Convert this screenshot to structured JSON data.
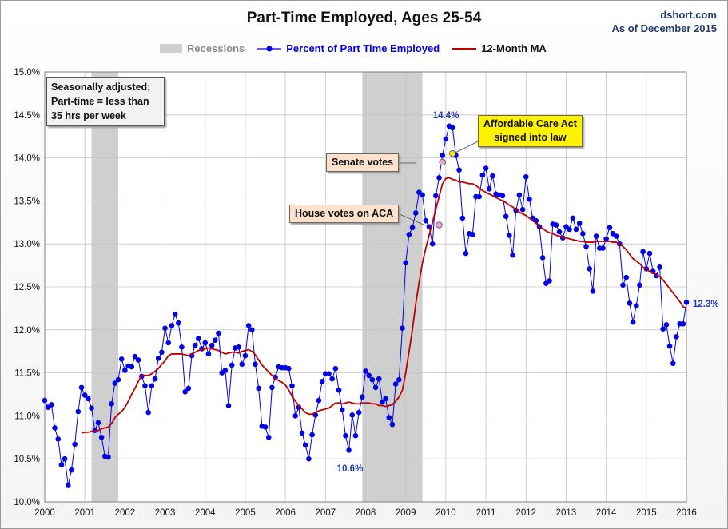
{
  "header": {
    "title": "Part-Time Employed, Ages 25-54",
    "source_line1": "dshort.com",
    "source_line2": "As of December 2015"
  },
  "legend": {
    "recessions": "Recessions",
    "series": "Percent of Part Time Employed",
    "ma": "12-Month MA"
  },
  "note": {
    "line1": "Seasonally adjusted;",
    "line2": "Part-time = less than",
    "line3": "35 hrs per week"
  },
  "annotations": {
    "senate": "Senate votes",
    "house": "House votes on ACA",
    "aca_line1": "Affordable Care Act",
    "aca_line2": "signed into law",
    "peak": "14.4%",
    "trough": "10.6%",
    "last": "12.3%"
  },
  "colors": {
    "series": "#0000e8",
    "ma": "#c00000",
    "recession": "#cfcfcf",
    "label": "#1f3bb0"
  },
  "chart_data": {
    "type": "line",
    "title": "Part-Time Employed, Ages 25-54",
    "xlabel": "",
    "ylabel": "",
    "x_start": "2000-01",
    "frequency": "monthly",
    "xlim": [
      2000,
      2016
    ],
    "ylim": [
      10.0,
      15.0
    ],
    "y_ticks": [
      "10.0%",
      "10.5%",
      "11.0%",
      "11.5%",
      "12.0%",
      "12.5%",
      "13.0%",
      "13.5%",
      "14.0%",
      "14.5%",
      "15.0%"
    ],
    "x_ticks": [
      "2000",
      "2001",
      "2002",
      "2003",
      "2004",
      "2005",
      "2006",
      "2007",
      "2008",
      "2009",
      "2010",
      "2011",
      "2012",
      "2013",
      "2014",
      "2015",
      "2016"
    ],
    "grid": true,
    "legend_position": "top",
    "recessions": [
      [
        "2001-03",
        "2001-11"
      ],
      [
        "2007-12",
        "2009-06"
      ]
    ],
    "series": [
      {
        "name": "Percent of Part Time Employed",
        "values": [
          11.18,
          11.1,
          11.13,
          10.86,
          10.73,
          10.43,
          10.5,
          10.19,
          10.37,
          10.67,
          11.05,
          11.33,
          11.24,
          11.2,
          11.09,
          10.83,
          10.92,
          10.75,
          10.53,
          10.52,
          11.14,
          11.38,
          11.42,
          11.66,
          11.53,
          11.58,
          11.57,
          11.69,
          11.65,
          11.46,
          11.35,
          11.04,
          11.35,
          11.43,
          11.67,
          11.74,
          12.02,
          11.85,
          12.05,
          12.18,
          12.08,
          11.8,
          11.28,
          11.32,
          11.7,
          11.82,
          11.9,
          11.78,
          11.85,
          11.72,
          11.82,
          11.88,
          11.96,
          11.5,
          11.53,
          11.12,
          11.59,
          11.79,
          11.8,
          11.6,
          11.7,
          12.05,
          12.0,
          11.6,
          11.32,
          10.88,
          10.87,
          10.75,
          11.33,
          11.45,
          11.57,
          11.56,
          11.56,
          11.55,
          11.35,
          11.0,
          11.1,
          10.8,
          10.66,
          10.5,
          10.78,
          11.01,
          11.18,
          11.4,
          11.49,
          11.49,
          11.43,
          11.55,
          11.3,
          11.07,
          10.77,
          10.6,
          11.01,
          10.77,
          11.04,
          11.22,
          11.52,
          11.47,
          11.42,
          11.33,
          11.43,
          11.16,
          11.2,
          10.98,
          10.9,
          11.37,
          11.42,
          12.02,
          12.78,
          13.11,
          13.19,
          13.36,
          13.6,
          13.57,
          13.27,
          13.2,
          13.0,
          13.56,
          13.77,
          14.03,
          14.22,
          14.37,
          14.35,
          14.03,
          13.86,
          13.3,
          12.89,
          13.12,
          13.11,
          13.55,
          13.55,
          13.8,
          13.88,
          13.64,
          13.79,
          13.58,
          13.57,
          13.56,
          13.32,
          13.1,
          12.87,
          13.39,
          13.57,
          13.4,
          13.78,
          13.52,
          13.3,
          13.27,
          13.2,
          12.84,
          12.54,
          12.57,
          13.23,
          13.22,
          13.14,
          13.07,
          13.2,
          13.17,
          13.3,
          13.17,
          13.24,
          13.12,
          12.97,
          12.71,
          12.45,
          13.09,
          12.95,
          12.95,
          13.06,
          13.19,
          13.12,
          13.09,
          13.0,
          12.52,
          12.61,
          12.31,
          12.09,
          12.28,
          12.52,
          12.91,
          12.71,
          12.89,
          12.68,
          12.63,
          12.73,
          12.01,
          12.06,
          11.81,
          11.61,
          11.92,
          12.07,
          12.07,
          12.32
        ]
      },
      {
        "name": "12-Month MA",
        "values": [
          null,
          null,
          null,
          null,
          null,
          null,
          null,
          null,
          null,
          null,
          null,
          10.8,
          10.81,
          10.81,
          10.82,
          10.82,
          10.83,
          10.85,
          10.86,
          10.87,
          10.91,
          10.98,
          11.02,
          11.05,
          11.1,
          11.17,
          11.25,
          11.32,
          11.4,
          11.47,
          11.47,
          11.47,
          11.49,
          11.52,
          11.55,
          11.6,
          11.64,
          11.7,
          11.72,
          11.72,
          11.72,
          11.72,
          11.71,
          11.7,
          11.72,
          11.74,
          11.76,
          11.77,
          11.78,
          11.79,
          11.78,
          11.77,
          11.76,
          11.74,
          11.72,
          11.73,
          11.74,
          11.74,
          11.73,
          11.75,
          11.76,
          11.77,
          11.75,
          11.71,
          11.65,
          11.59,
          11.55,
          11.51,
          11.47,
          11.43,
          11.41,
          11.39,
          11.36,
          11.3,
          11.23,
          11.17,
          11.12,
          11.08,
          11.04,
          11.02,
          11.02,
          11.04,
          11.06,
          11.07,
          11.08,
          11.09,
          11.12,
          11.15,
          11.15,
          11.14,
          11.15,
          11.16,
          11.15,
          11.14,
          11.14,
          11.15,
          11.15,
          11.15,
          11.14,
          11.14,
          11.12,
          11.12,
          11.11,
          11.12,
          11.13,
          11.17,
          11.22,
          11.3,
          11.5,
          11.75,
          12.0,
          12.3,
          12.55,
          12.78,
          12.95,
          13.1,
          13.25,
          13.4,
          13.55,
          13.7,
          13.76,
          13.77,
          13.75,
          13.74,
          13.72,
          13.72,
          13.71,
          13.7,
          13.7,
          13.68,
          13.65,
          13.62,
          13.6,
          13.58,
          13.56,
          13.54,
          13.52,
          13.5,
          13.48,
          13.45,
          13.43,
          13.4,
          13.37,
          13.35,
          13.33,
          13.3,
          13.27,
          13.24,
          13.2,
          13.18,
          13.15,
          13.13,
          13.12,
          13.1,
          13.09,
          13.08,
          13.07,
          13.06,
          13.05,
          13.04,
          13.03,
          13.03,
          13.02,
          13.02,
          13.02,
          13.03,
          13.03,
          13.03,
          13.03,
          13.03,
          13.02,
          13.02,
          13.0,
          12.97,
          12.93,
          12.88,
          12.83,
          12.8,
          12.77,
          12.73,
          12.7,
          12.68,
          12.66,
          12.64,
          12.62,
          12.58,
          12.53,
          12.48,
          12.43,
          12.38,
          12.33,
          12.27,
          12.25
        ]
      }
    ],
    "markers": [
      {
        "date": "2009-11",
        "value": 13.22
      },
      {
        "date": "2009-12",
        "value": 13.95
      },
      {
        "date": "2010-03",
        "value": 14.05
      }
    ]
  }
}
